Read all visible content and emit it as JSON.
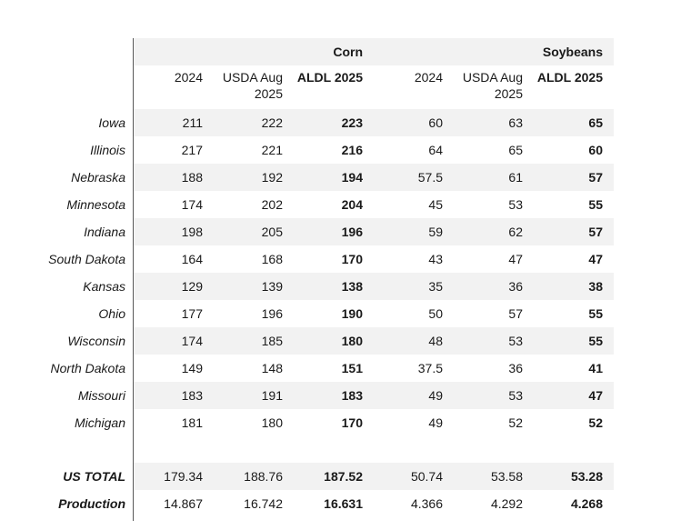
{
  "table": {
    "group_header": {
      "corn": "Corn",
      "soybeans": "Soybeans"
    },
    "columns": [
      "2024",
      "USDA Aug 2025",
      "ALDL 2025",
      "2024",
      "USDA Aug 2025",
      "ALDL 2025"
    ],
    "rows": [
      {
        "label": "Iowa",
        "values": [
          "211",
          "222",
          "223",
          "60",
          "63",
          "65"
        ]
      },
      {
        "label": "Illinois",
        "values": [
          "217",
          "221",
          "216",
          "64",
          "65",
          "60"
        ]
      },
      {
        "label": "Nebraska",
        "values": [
          "188",
          "192",
          "194",
          "57.5",
          "61",
          "57"
        ]
      },
      {
        "label": "Minnesota",
        "values": [
          "174",
          "202",
          "204",
          "45",
          "53",
          "55"
        ]
      },
      {
        "label": "Indiana",
        "values": [
          "198",
          "205",
          "196",
          "59",
          "62",
          "57"
        ]
      },
      {
        "label": "South Dakota",
        "values": [
          "164",
          "168",
          "170",
          "43",
          "47",
          "47"
        ]
      },
      {
        "label": "Kansas",
        "values": [
          "129",
          "139",
          "138",
          "35",
          "36",
          "38"
        ]
      },
      {
        "label": "Ohio",
        "values": [
          "177",
          "196",
          "190",
          "50",
          "57",
          "55"
        ]
      },
      {
        "label": "Wisconsin",
        "values": [
          "174",
          "185",
          "180",
          "48",
          "53",
          "55"
        ]
      },
      {
        "label": "North Dakota",
        "values": [
          "149",
          "148",
          "151",
          "37.5",
          "36",
          "41"
        ]
      },
      {
        "label": "Missouri",
        "values": [
          "183",
          "191",
          "183",
          "49",
          "53",
          "47"
        ]
      },
      {
        "label": "Michigan",
        "values": [
          "181",
          "180",
          "170",
          "49",
          "52",
          "52"
        ]
      }
    ],
    "totals": [
      {
        "label": "US TOTAL",
        "values": [
          "179.34",
          "188.76",
          "187.52",
          "50.74",
          "53.58",
          "53.28"
        ]
      },
      {
        "label": "Production",
        "values": [
          "14.867",
          "16.742",
          "16.631",
          "4.366",
          "4.292",
          "4.268"
        ]
      }
    ],
    "colors": {
      "band": "#f2f2f2",
      "divider": "#595959"
    }
  }
}
